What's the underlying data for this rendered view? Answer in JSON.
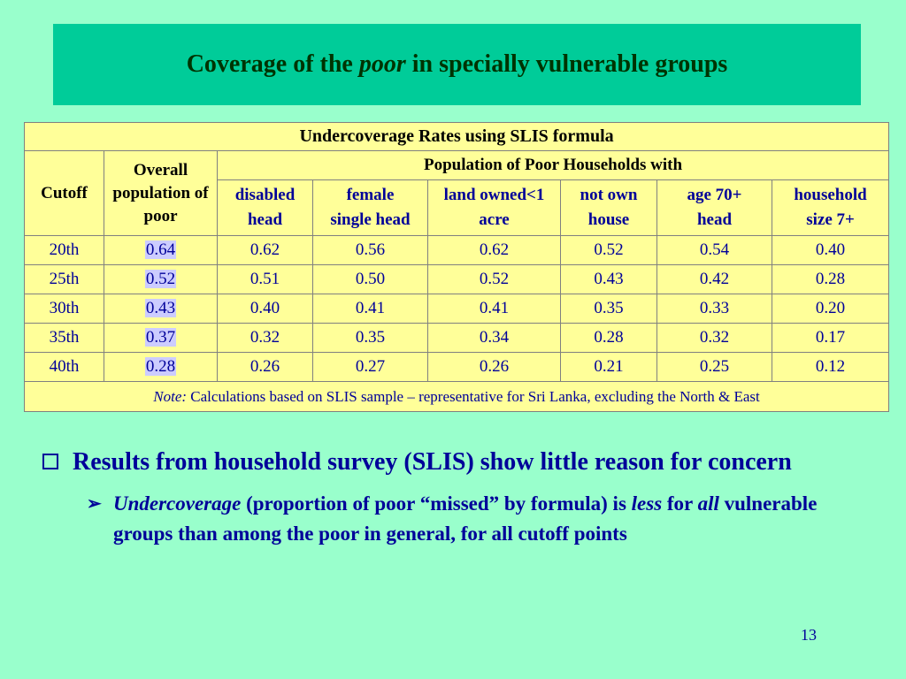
{
  "slide": {
    "title_pre": "Coverage of the",
    "title_em": "poor",
    "title_post": "in specially vulnerable groups",
    "page_number": "13"
  },
  "table": {
    "caption": "Undercoverage Rates using SLIS formula",
    "cutoff_header": "Cutoff",
    "overall_header": "Overall population of poor",
    "group_header": "Population of Poor Households with",
    "columns": [
      {
        "line1": "disabled",
        "line2": "head"
      },
      {
        "line1": "female",
        "line2": "single head"
      },
      {
        "line1": "land owned<1",
        "line2": "acre"
      },
      {
        "line1": "not own",
        "line2": "house"
      },
      {
        "line1": "age 70+",
        "line2": "head"
      },
      {
        "line1": "household",
        "line2": "size 7+"
      }
    ],
    "rows": [
      {
        "cutoff": "20th",
        "overall": "0.64",
        "values": [
          "0.62",
          "0.56",
          "0.62",
          "0.52",
          "0.54",
          "0.40"
        ]
      },
      {
        "cutoff": "25th",
        "overall": "0.52",
        "values": [
          "0.51",
          "0.50",
          "0.52",
          "0.43",
          "0.42",
          "0.28"
        ]
      },
      {
        "cutoff": "30th",
        "overall": "0.43",
        "values": [
          "0.40",
          "0.41",
          "0.41",
          "0.35",
          "0.33",
          "0.20"
        ]
      },
      {
        "cutoff": "35th",
        "overall": "0.37",
        "values": [
          "0.32",
          "0.35",
          "0.34",
          "0.28",
          "0.32",
          "0.17"
        ]
      },
      {
        "cutoff": "40th",
        "overall": "0.28",
        "values": [
          "0.26",
          "0.27",
          "0.26",
          "0.21",
          "0.25",
          "0.12"
        ]
      }
    ],
    "note_label": "Note:",
    "note_text": "Calculations based on SLIS sample –  representative for Sri Lanka, excluding the North & East"
  },
  "bullets": {
    "main": "Results from household survey (SLIS) show little reason for concern",
    "sub_em1": "Undercoverage",
    "sub_text1": "(proportion of poor “missed” by formula) is",
    "sub_em2": "less",
    "sub_text2": "for",
    "sub_em3": "all",
    "sub_text3": "vulnerable groups than among the poor in general, for all cutoff points"
  }
}
